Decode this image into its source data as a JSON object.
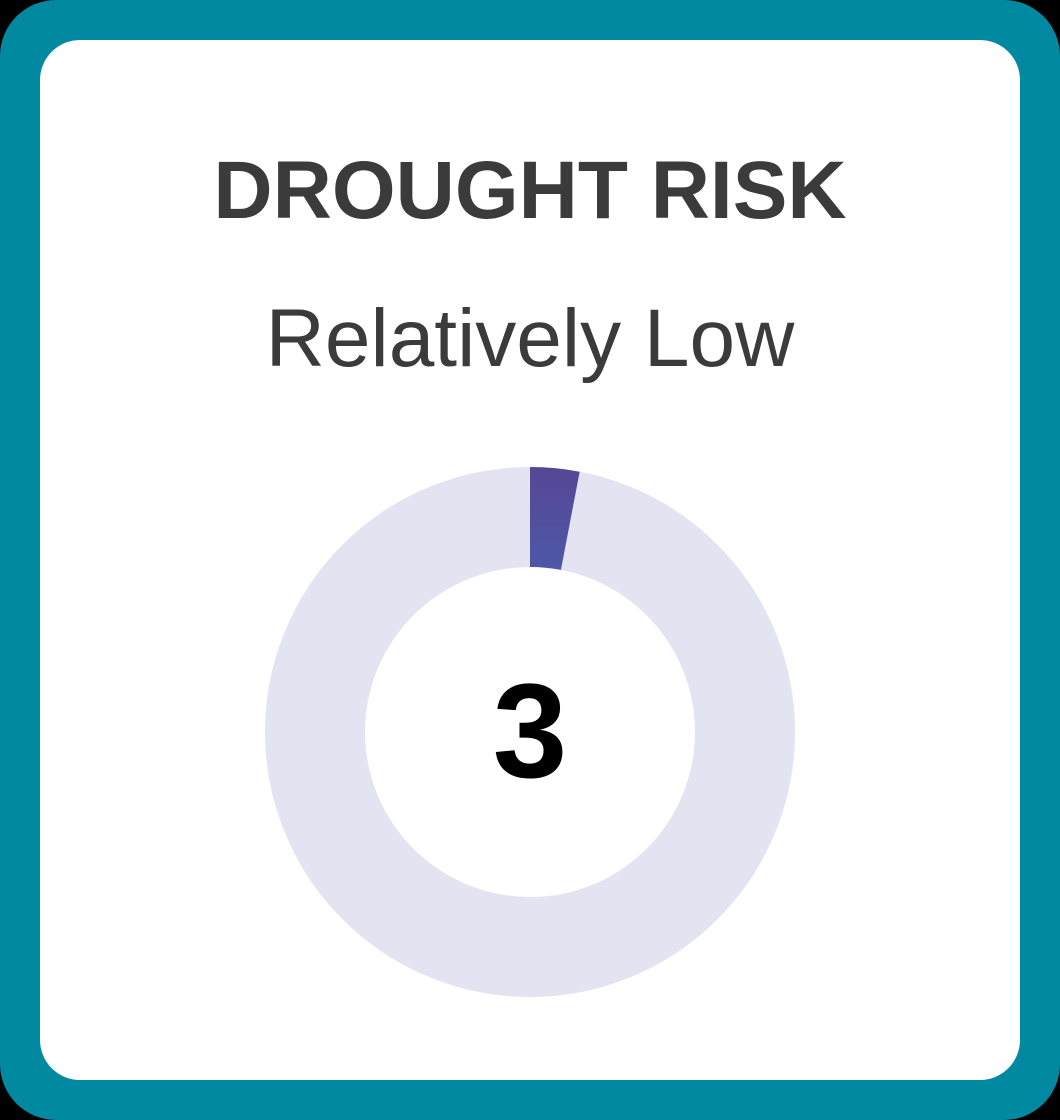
{
  "card": {
    "title": "DROUGHT RISK",
    "rating": "Relatively Low",
    "score": "3"
  },
  "chart_data": {
    "type": "pie",
    "subtype": "donut-gauge",
    "title": "DROUGHT RISK",
    "rating_label": "Relatively Low",
    "value": 3,
    "max": 100,
    "center_label": "3",
    "start_angle_deg": 0,
    "sweep_deg": 10.8,
    "colors": {
      "segment_top": "#564795",
      "segment_bottom": "#4d59a9",
      "track": "#e4e3f1",
      "frame_teal": "#0089a0",
      "card_bg": "#ffffff",
      "text": "#3b3b3b",
      "score_text": "#000000"
    }
  }
}
